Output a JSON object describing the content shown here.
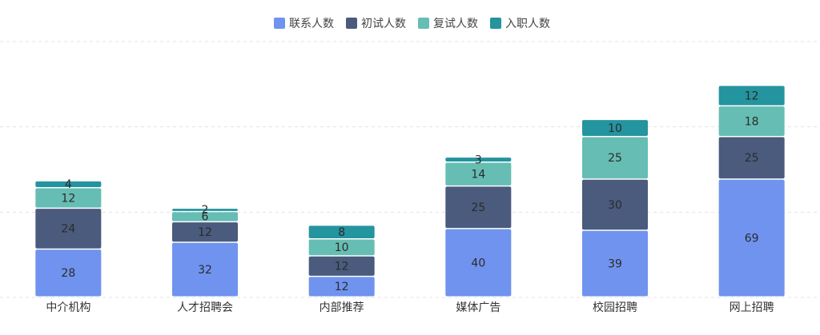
{
  "chart_data": {
    "type": "bar",
    "stacked": true,
    "categories": [
      "中介机构",
      "人才招聘会",
      "内部推荐",
      "媒体广告",
      "校园招聘",
      "网上招聘"
    ],
    "series": [
      {
        "name": "联系人数",
        "color": "#6f93ee",
        "values": [
          28,
          32,
          12,
          40,
          39,
          69
        ]
      },
      {
        "name": "初试人数",
        "color": "#4a5b7d",
        "values": [
          24,
          12,
          12,
          25,
          30,
          25
        ]
      },
      {
        "name": "复试人数",
        "color": "#66bdb3",
        "values": [
          12,
          6,
          10,
          14,
          25,
          18
        ]
      },
      {
        "name": "入职人数",
        "color": "#24949f",
        "values": [
          4,
          2,
          8,
          3,
          10,
          12
        ]
      }
    ],
    "title": "",
    "xlabel": "",
    "ylabel": "",
    "ylim": [
      0,
      150
    ],
    "grid": true,
    "legend_position": "top-center",
    "data_labels": true
  }
}
